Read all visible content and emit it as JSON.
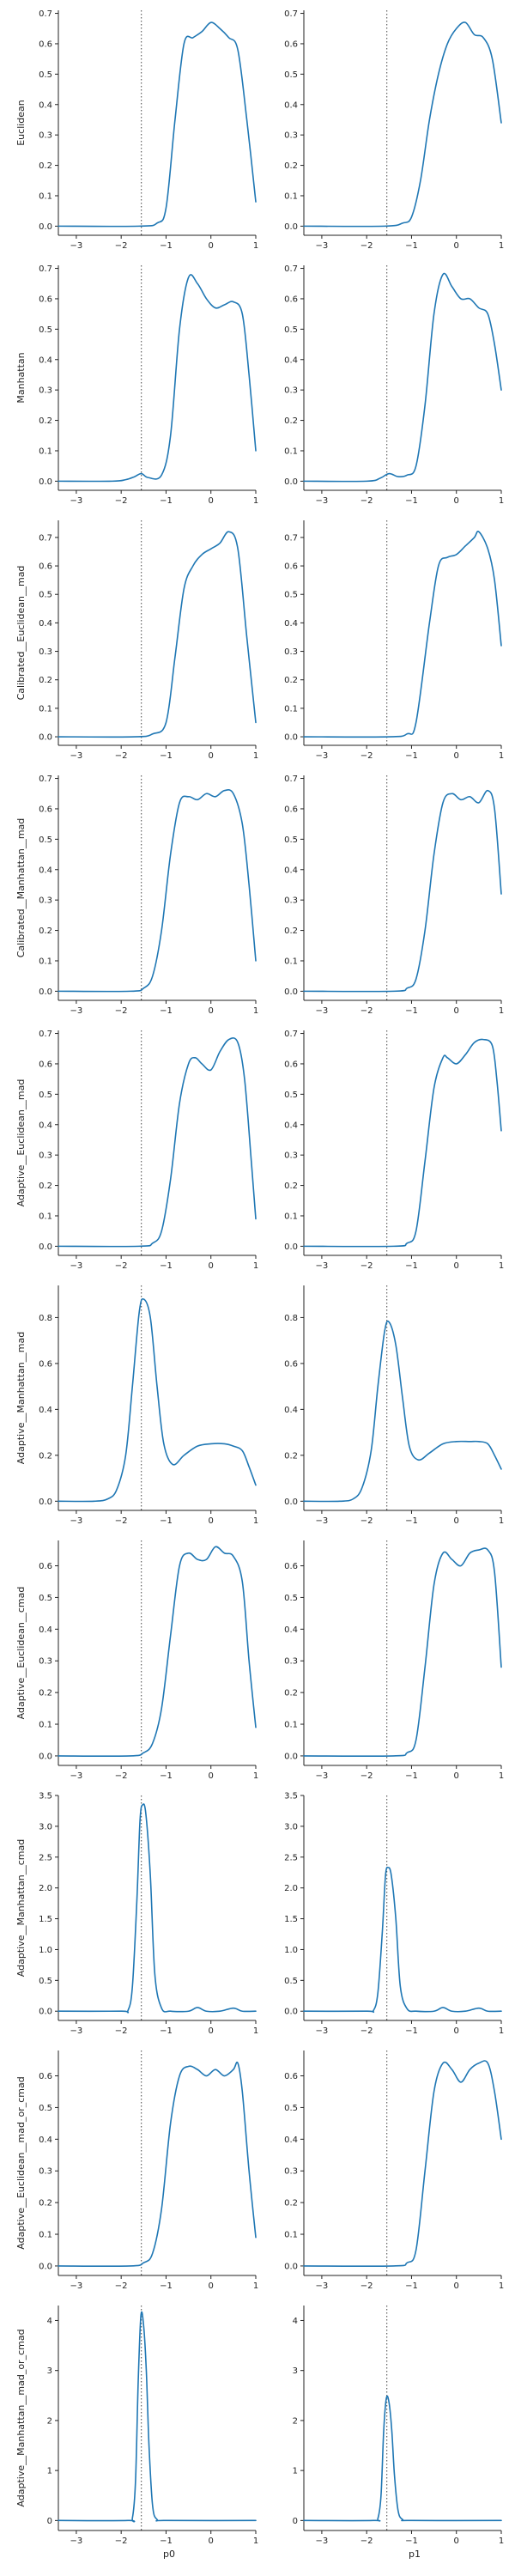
{
  "chart_data": {
    "type": "line",
    "layout": "grid 10 rows x 2 columns",
    "line_color": "#1f77b4",
    "reference_x": -1.55,
    "xlim": [
      -3.4,
      1.0
    ],
    "xticks": [
      -3,
      -2,
      -1,
      0,
      1
    ],
    "xtick_labels": [
      "−3",
      "−2",
      "−1",
      "0",
      "1"
    ],
    "column_xlabels": [
      "p0",
      "p1"
    ],
    "rows": [
      {
        "ylabel": "Euclidean",
        "ylim": [
          -0.03,
          0.71
        ],
        "yticks": [
          "0.0",
          "0.1",
          "0.2",
          "0.3",
          "0.4",
          "0.5",
          "0.6",
          "0.7"
        ],
        "panels": [
          {
            "name": "p0",
            "x": [
              -3.4,
              -1.6,
              -1.2,
              -1.0,
              -0.8,
              -0.6,
              -0.4,
              -0.2,
              0.0,
              0.2,
              0.4,
              0.6,
              0.8,
              1.0
            ],
            "y": [
              0,
              0,
              0.01,
              0.06,
              0.35,
              0.6,
              0.62,
              0.64,
              0.67,
              0.65,
              0.62,
              0.58,
              0.35,
              0.08
            ]
          },
          {
            "name": "p1",
            "x": [
              -3.4,
              -1.6,
              -1.2,
              -1.0,
              -0.8,
              -0.6,
              -0.4,
              -0.2,
              0.0,
              0.2,
              0.4,
              0.6,
              0.8,
              1.0
            ],
            "y": [
              0,
              0,
              0.01,
              0.03,
              0.15,
              0.35,
              0.5,
              0.6,
              0.65,
              0.67,
              0.63,
              0.62,
              0.55,
              0.34
            ]
          }
        ]
      },
      {
        "ylabel": "Manhattan",
        "ylim": [
          -0.03,
          0.71
        ],
        "yticks": [
          "0.0",
          "0.1",
          "0.2",
          "0.3",
          "0.4",
          "0.5",
          "0.6",
          "0.7"
        ],
        "panels": [
          {
            "name": "p0",
            "x": [
              -3.4,
              -2.2,
              -1.9,
              -1.7,
              -1.55,
              -1.4,
              -1.1,
              -0.9,
              -0.7,
              -0.5,
              -0.3,
              -0.1,
              0.1,
              0.3,
              0.5,
              0.7,
              0.85,
              1.0
            ],
            "y": [
              0,
              0,
              0.005,
              0.015,
              0.025,
              0.012,
              0.02,
              0.15,
              0.5,
              0.67,
              0.65,
              0.6,
              0.57,
              0.58,
              0.59,
              0.55,
              0.35,
              0.1
            ]
          },
          {
            "name": "p1",
            "x": [
              -3.4,
              -2.0,
              -1.7,
              -1.5,
              -1.3,
              -1.1,
              -0.9,
              -0.7,
              -0.5,
              -0.3,
              -0.1,
              0.1,
              0.3,
              0.5,
              0.7,
              0.85,
              1.0
            ],
            "y": [
              0,
              0,
              0.01,
              0.025,
              0.015,
              0.02,
              0.05,
              0.25,
              0.55,
              0.68,
              0.64,
              0.6,
              0.6,
              0.57,
              0.55,
              0.45,
              0.3
            ]
          }
        ]
      },
      {
        "ylabel": "Calibrated__Euclidean__mad",
        "ylim": [
          -0.03,
          0.76
        ],
        "yticks": [
          "0.0",
          "0.1",
          "0.2",
          "0.3",
          "0.4",
          "0.5",
          "0.6",
          "0.7"
        ],
        "panels": [
          {
            "name": "p0",
            "x": [
              -3.4,
              -1.7,
              -1.3,
              -1.0,
              -0.8,
              -0.6,
              -0.4,
              -0.2,
              0.0,
              0.2,
              0.4,
              0.6,
              0.8,
              1.0
            ],
            "y": [
              0,
              0,
              0.01,
              0.05,
              0.28,
              0.52,
              0.6,
              0.64,
              0.66,
              0.68,
              0.72,
              0.66,
              0.35,
              0.05
            ]
          },
          {
            "name": "p1",
            "x": [
              -3.4,
              -1.5,
              -1.1,
              -0.9,
              -0.6,
              -0.4,
              -0.2,
              0.0,
              0.2,
              0.4,
              0.5,
              0.7,
              0.85,
              1.0
            ],
            "y": [
              0,
              0,
              0.01,
              0.05,
              0.4,
              0.6,
              0.63,
              0.64,
              0.67,
              0.7,
              0.72,
              0.66,
              0.55,
              0.32
            ]
          }
        ]
      },
      {
        "ylabel": "Calibrated__Manhattan__mad",
        "ylim": [
          -0.03,
          0.71
        ],
        "yticks": [
          "0.0",
          "0.1",
          "0.2",
          "0.3",
          "0.4",
          "0.5",
          "0.6",
          "0.7"
        ],
        "panels": [
          {
            "name": "p0",
            "x": [
              -3.4,
              -1.8,
              -1.5,
              -1.3,
              -1.1,
              -0.9,
              -0.7,
              -0.5,
              -0.3,
              -0.1,
              0.1,
              0.3,
              0.5,
              0.7,
              0.85,
              1.0
            ],
            "y": [
              0,
              0,
              0.01,
              0.05,
              0.2,
              0.45,
              0.62,
              0.64,
              0.63,
              0.65,
              0.64,
              0.66,
              0.65,
              0.55,
              0.35,
              0.1
            ]
          },
          {
            "name": "p1",
            "x": [
              -3.4,
              -1.4,
              -1.1,
              -0.9,
              -0.7,
              -0.5,
              -0.3,
              -0.1,
              0.1,
              0.3,
              0.5,
              0.7,
              0.85,
              1.0
            ],
            "y": [
              0,
              0,
              0.01,
              0.04,
              0.2,
              0.45,
              0.62,
              0.65,
              0.63,
              0.64,
              0.62,
              0.66,
              0.6,
              0.32
            ]
          }
        ]
      },
      {
        "ylabel": "Adaptive__Euclidean__mad",
        "ylim": [
          -0.03,
          0.71
        ],
        "yticks": [
          "0.0",
          "0.1",
          "0.2",
          "0.3",
          "0.4",
          "0.5",
          "0.6",
          "0.7"
        ],
        "panels": [
          {
            "name": "p0",
            "x": [
              -3.4,
              -1.6,
              -1.3,
              -1.1,
              -0.9,
              -0.7,
              -0.5,
              -0.35,
              -0.2,
              0.0,
              0.2,
              0.4,
              0.6,
              0.75,
              0.9,
              1.0
            ],
            "y": [
              0,
              0,
              0.01,
              0.05,
              0.22,
              0.47,
              0.6,
              0.62,
              0.6,
              0.58,
              0.64,
              0.68,
              0.67,
              0.55,
              0.28,
              0.09
            ]
          },
          {
            "name": "p1",
            "x": [
              -3.4,
              -1.4,
              -1.1,
              -0.9,
              -0.7,
              -0.5,
              -0.3,
              -0.2,
              0.0,
              0.2,
              0.4,
              0.6,
              0.8,
              0.9,
              1.0
            ],
            "y": [
              0,
              0,
              0.01,
              0.05,
              0.28,
              0.52,
              0.62,
              0.62,
              0.6,
              0.63,
              0.67,
              0.68,
              0.66,
              0.55,
              0.38
            ]
          }
        ]
      },
      {
        "ylabel": "Adaptive__Manhattan__mad",
        "ylim": [
          -0.04,
          0.94
        ],
        "yticks": [
          "0.0",
          "0.2",
          "0.4",
          "0.6",
          "0.8"
        ],
        "panels": [
          {
            "name": "p0",
            "x": [
              -3.4,
              -2.6,
              -2.3,
              -2.1,
              -1.9,
              -1.75,
              -1.6,
              -1.5,
              -1.35,
              -1.2,
              -1.05,
              -0.85,
              -0.6,
              -0.3,
              0.0,
              0.3,
              0.5,
              0.7,
              0.85,
              1.0
            ],
            "y": [
              0,
              0,
              0.01,
              0.05,
              0.2,
              0.5,
              0.82,
              0.88,
              0.8,
              0.5,
              0.25,
              0.16,
              0.2,
              0.24,
              0.25,
              0.25,
              0.24,
              0.22,
              0.15,
              0.07
            ]
          },
          {
            "name": "p1",
            "x": [
              -3.4,
              -2.6,
              -2.3,
              -2.1,
              -1.9,
              -1.75,
              -1.6,
              -1.5,
              -1.35,
              -1.2,
              -1.05,
              -0.85,
              -0.6,
              -0.3,
              0.0,
              0.3,
              0.5,
              0.7,
              0.85,
              1.0
            ],
            "y": [
              0,
              0,
              0.01,
              0.06,
              0.22,
              0.5,
              0.74,
              0.78,
              0.68,
              0.45,
              0.24,
              0.18,
              0.21,
              0.25,
              0.26,
              0.26,
              0.26,
              0.25,
              0.2,
              0.14
            ]
          }
        ]
      },
      {
        "ylabel": "Adaptive__Euclidean__cmad",
        "ylim": [
          -0.03,
          0.68
        ],
        "yticks": [
          "0.0",
          "0.1",
          "0.2",
          "0.3",
          "0.4",
          "0.5",
          "0.6"
        ],
        "panels": [
          {
            "name": "p0",
            "x": [
              -3.4,
              -1.8,
              -1.5,
              -1.3,
              -1.1,
              -0.9,
              -0.7,
              -0.5,
              -0.3,
              -0.1,
              0.1,
              0.3,
              0.5,
              0.7,
              0.85,
              1.0
            ],
            "y": [
              0,
              0,
              0.01,
              0.04,
              0.15,
              0.38,
              0.6,
              0.64,
              0.62,
              0.62,
              0.66,
              0.64,
              0.63,
              0.55,
              0.3,
              0.09
            ]
          },
          {
            "name": "p1",
            "x": [
              -3.4,
              -1.4,
              -1.1,
              -0.9,
              -0.7,
              -0.5,
              -0.3,
              -0.1,
              0.1,
              0.3,
              0.5,
              0.7,
              0.85,
              1.0
            ],
            "y": [
              0,
              0,
              0.01,
              0.05,
              0.28,
              0.54,
              0.64,
              0.62,
              0.6,
              0.64,
              0.65,
              0.65,
              0.58,
              0.28
            ]
          }
        ]
      },
      {
        "ylabel": "Adaptive__Manhattan__cmad",
        "ylim": [
          -0.15,
          3.5
        ],
        "yticks": [
          "0.0",
          "0.5",
          "1.0",
          "1.5",
          "2.0",
          "2.5",
          "3.0",
          "3.5"
        ],
        "panels": [
          {
            "name": "p0",
            "x": [
              -3.4,
              -2.0,
              -1.85,
              -1.75,
              -1.65,
              -1.58,
              -1.52,
              -1.45,
              -1.35,
              -1.25,
              -1.1,
              -0.9,
              -0.5,
              -0.3,
              -0.1,
              0.2,
              0.5,
              0.7,
              1.0
            ],
            "y": [
              0,
              0,
              0.01,
              0.4,
              1.8,
              3.1,
              3.35,
              3.2,
              2.2,
              0.6,
              0.05,
              0.0,
              0.0,
              0.06,
              0.0,
              0.0,
              0.05,
              0.0,
              0.0
            ]
          },
          {
            "name": "p1",
            "x": [
              -3.4,
              -2.0,
              -1.85,
              -1.75,
              -1.65,
              -1.58,
              -1.52,
              -1.45,
              -1.35,
              -1.25,
              -1.1,
              -0.9,
              -0.5,
              -0.3,
              -0.1,
              0.2,
              0.5,
              0.7,
              1.0
            ],
            "y": [
              0,
              0,
              0.01,
              0.3,
              1.3,
              2.2,
              2.33,
              2.2,
              1.5,
              0.4,
              0.04,
              0.0,
              0.0,
              0.06,
              0.0,
              0.0,
              0.05,
              0.0,
              0.0
            ]
          }
        ]
      },
      {
        "ylabel": "Adaptive__Euclidean__mad_or_cmad",
        "ylim": [
          -0.03,
          0.68
        ],
        "yticks": [
          "0.0",
          "0.1",
          "0.2",
          "0.3",
          "0.4",
          "0.5",
          "0.6"
        ],
        "panels": [
          {
            "name": "p0",
            "x": [
              -3.4,
              -1.8,
              -1.5,
              -1.3,
              -1.1,
              -0.9,
              -0.7,
              -0.5,
              -0.3,
              -0.1,
              0.1,
              0.3,
              0.5,
              0.6,
              0.7,
              0.85,
              1.0
            ],
            "y": [
              0,
              0,
              0.01,
              0.04,
              0.18,
              0.45,
              0.6,
              0.63,
              0.62,
              0.6,
              0.62,
              0.6,
              0.62,
              0.64,
              0.55,
              0.3,
              0.09
            ]
          },
          {
            "name": "p1",
            "x": [
              -3.4,
              -1.4,
              -1.1,
              -0.9,
              -0.7,
              -0.5,
              -0.3,
              -0.1,
              0.1,
              0.3,
              0.5,
              0.7,
              0.85,
              1.0
            ],
            "y": [
              0,
              0,
              0.01,
              0.05,
              0.3,
              0.55,
              0.64,
              0.62,
              0.58,
              0.62,
              0.64,
              0.64,
              0.55,
              0.4
            ]
          }
        ]
      },
      {
        "ylabel": "Adaptive__Manhattan__mad_or_cmad",
        "ylim": [
          -0.2,
          4.3
        ],
        "yticks": [
          "0",
          "1",
          "2",
          "3",
          "4"
        ],
        "panels": [
          {
            "name": "p0",
            "x": [
              -3.4,
              -1.85,
              -1.75,
              -1.68,
              -1.62,
              -1.56,
              -1.5,
              -1.44,
              -1.38,
              -1.3,
              -1.2,
              -1.0,
              1.0
            ],
            "y": [
              0,
              0,
              0.05,
              0.8,
              2.8,
              4.1,
              3.9,
              3.0,
              1.5,
              0.3,
              0.02,
              0,
              0
            ]
          },
          {
            "name": "p1",
            "x": [
              -3.4,
              -1.85,
              -1.75,
              -1.68,
              -1.62,
              -1.56,
              -1.5,
              -1.44,
              -1.38,
              -1.3,
              -1.2,
              -1.0,
              1.0
            ],
            "y": [
              0,
              0,
              0.04,
              0.5,
              1.8,
              2.45,
              2.35,
              1.8,
              0.9,
              0.2,
              0.02,
              0,
              0
            ]
          }
        ]
      }
    ]
  }
}
